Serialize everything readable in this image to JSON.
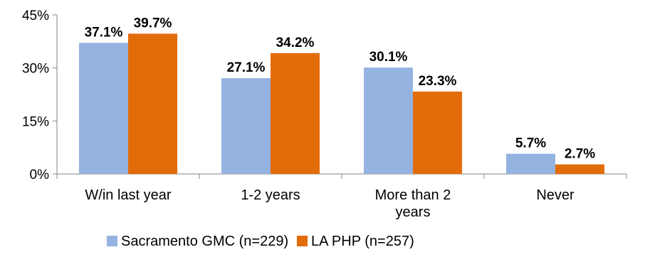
{
  "chart_data": {
    "type": "bar",
    "title": "",
    "xlabel": "",
    "ylabel": "",
    "categories": [
      "W/in last year",
      "1-2 years",
      "More than 2 years",
      "Never"
    ],
    "series": [
      {
        "name": "Sacramento GMC (n=229)",
        "values": [
          37.1,
          27.1,
          30.1,
          5.7
        ],
        "labels": [
          "37.1%",
          "27.1%",
          "30.1%",
          "5.7%"
        ],
        "color": "#95b3e0"
      },
      {
        "name": "LA PHP (n=257)",
        "values": [
          39.7,
          34.2,
          23.3,
          2.7
        ],
        "labels": [
          "39.7%",
          "34.2%",
          "23.3%",
          "2.7%"
        ],
        "color": "#e36c0a"
      }
    ],
    "ylim": [
      0,
      45
    ],
    "yticks": [
      "0%",
      "15%",
      "30%",
      "45%"
    ],
    "grid": false,
    "legend_position": "bottom"
  }
}
